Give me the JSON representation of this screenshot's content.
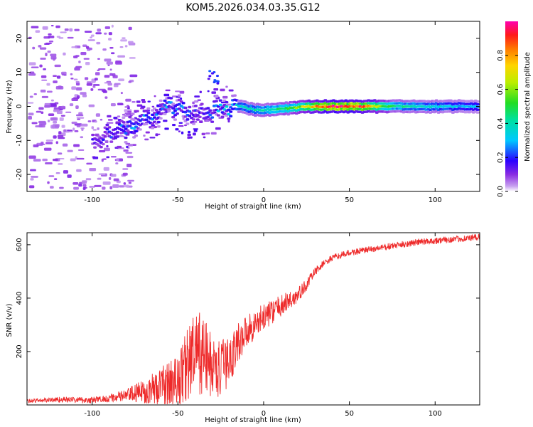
{
  "figure_title": "KOM5.2026.034.03.35.G12",
  "colors": {
    "snr_line": "#ee2b2b",
    "axis": "#000000",
    "background": "#ffffff"
  },
  "chart_data": [
    {
      "type": "heatmap",
      "name": "spectrogram",
      "xlabel": "Height of straight line (km)",
      "ylabel": "Frequency (Hz)",
      "xlim": [
        -138,
        126
      ],
      "ylim": [
        -25,
        25
      ],
      "xticks": [
        -100,
        -50,
        0,
        50,
        100
      ],
      "yticks": [
        -20,
        -10,
        0,
        10,
        20
      ],
      "colorbar": {
        "label": "Normalized spectral amplitude",
        "range": [
          0,
          1
        ],
        "ticks": [
          0.0,
          0.2,
          0.4,
          0.6,
          0.8
        ],
        "tick_labels": [
          "0.0",
          "0.2",
          "0.4",
          "0.6",
          "0.8"
        ],
        "colormap": "rainbow-violet-to-magenta"
      },
      "signal_ridge": [
        {
          "x": -95,
          "freq": -9,
          "amp": 0.18
        },
        {
          "x": -85,
          "freq": -7,
          "amp": 0.22
        },
        {
          "x": -75,
          "freq": -5,
          "amp": 0.28
        },
        {
          "x": -65,
          "freq": -3,
          "amp": 0.26
        },
        {
          "x": -55,
          "freq": 0,
          "amp": 0.3
        },
        {
          "x": -45,
          "freq": -2,
          "amp": 0.25
        },
        {
          "x": -35,
          "freq": -2,
          "amp": 0.2
        },
        {
          "x": -25,
          "freq": -1,
          "amp": 0.3
        },
        {
          "x": -15,
          "freq": 0,
          "amp": 0.35
        },
        {
          "x": -5,
          "freq": -1,
          "amp": 0.4
        },
        {
          "x": 5,
          "freq": -1,
          "amp": 0.45
        },
        {
          "x": 15,
          "freq": -0.5,
          "amp": 0.5
        },
        {
          "x": 25,
          "freq": 0,
          "amp": 0.7
        },
        {
          "x": 35,
          "freq": 0,
          "amp": 0.9
        },
        {
          "x": 45,
          "freq": 0,
          "amp": 0.95
        },
        {
          "x": 55,
          "freq": 0,
          "amp": 0.92
        },
        {
          "x": 65,
          "freq": 0,
          "amp": 0.7
        },
        {
          "x": 75,
          "freq": 0,
          "amp": 0.45
        },
        {
          "x": 85,
          "freq": 0,
          "amp": 0.4
        },
        {
          "x": 95,
          "freq": 0,
          "amp": 0.38
        },
        {
          "x": 105,
          "freq": 0,
          "amp": 0.35
        },
        {
          "x": 115,
          "freq": 0,
          "amp": 0.3
        },
        {
          "x": 125,
          "freq": 0,
          "amp": 0.3
        }
      ],
      "secondary_blob": {
        "x": -30,
        "freq": 9,
        "amp": 0.2
      }
    },
    {
      "type": "line",
      "name": "snr",
      "xlabel": "Height of straight line (km)",
      "ylabel": "SNR (v/v)",
      "xlim": [
        -138,
        126
      ],
      "ylim": [
        0,
        645
      ],
      "xticks": [
        -100,
        -50,
        0,
        50,
        100
      ],
      "yticks": [
        200,
        400,
        600
      ],
      "series": [
        {
          "name": "SNR",
          "x": [
            -138,
            -120,
            -100,
            -90,
            -80,
            -70,
            -60,
            -50,
            -45,
            -40,
            -35,
            -30,
            -25,
            -20,
            -15,
            -10,
            -5,
            0,
            5,
            10,
            15,
            20,
            25,
            30,
            35,
            40,
            50,
            60,
            70,
            80,
            90,
            100,
            110,
            120,
            126
          ],
          "values": [
            15,
            20,
            18,
            25,
            35,
            50,
            70,
            90,
            150,
            190,
            190,
            140,
            130,
            170,
            230,
            280,
            300,
            330,
            350,
            370,
            390,
            410,
            450,
            500,
            530,
            550,
            570,
            580,
            590,
            600,
            610,
            615,
            620,
            625,
            628
          ],
          "noise_amplitude": [
            8,
            10,
            12,
            14,
            25,
            45,
            70,
            100,
            140,
            160,
            150,
            120,
            110,
            90,
            80,
            60,
            55,
            50,
            45,
            40,
            38,
            30,
            22,
            15,
            12,
            12,
            12,
            12,
            12,
            12,
            12,
            12,
            12,
            12,
            12
          ]
        }
      ]
    }
  ]
}
